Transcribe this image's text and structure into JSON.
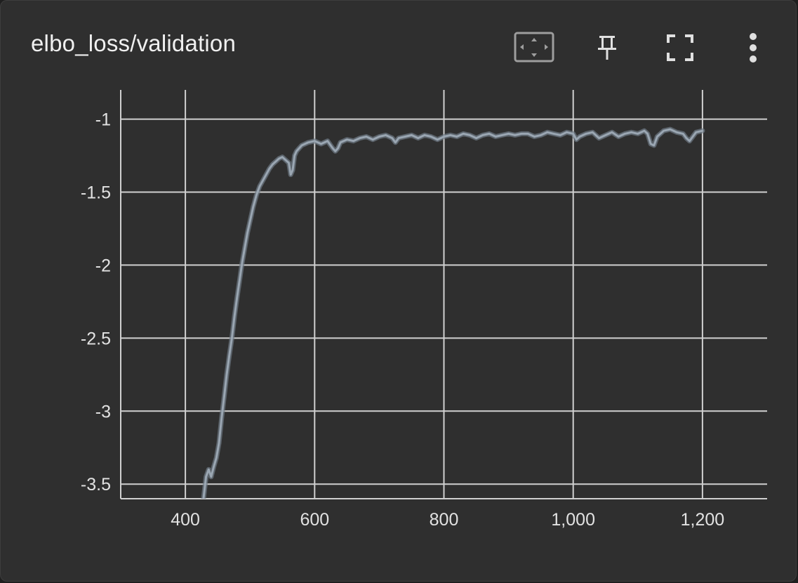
{
  "card": {
    "title": "elbo_loss/validation",
    "toolbar": [
      {
        "name": "fit-domain-icon",
        "label": "Fit domain to data"
      },
      {
        "name": "pin-icon",
        "label": "Pin card"
      },
      {
        "name": "fullscreen-icon",
        "label": "Toggle fullscreen"
      },
      {
        "name": "more-vert-icon",
        "label": "More actions"
      }
    ]
  },
  "colors": {
    "background": "#2f2f2f",
    "grid": "#d0d0d0",
    "line": "#9aa6b2",
    "line_raw": "#6f7b86",
    "text": "#f0f0f0"
  },
  "chart_data": {
    "type": "line",
    "title": "elbo_loss/validation",
    "xlabel": "",
    "ylabel": "",
    "xlim": [
      300,
      1300
    ],
    "ylim": [
      -3.6,
      -0.8
    ],
    "x_ticks": [
      400,
      600,
      800,
      1000,
      1200
    ],
    "x_tick_labels": [
      "400",
      "600",
      "800",
      "1,000",
      "1,200"
    ],
    "y_ticks": [
      -1,
      -1.5,
      -2,
      -2.5,
      -3,
      -3.5
    ],
    "y_tick_labels": [
      "-1",
      "-1.5",
      "-2",
      "-2.5",
      "-3",
      "-3.5"
    ],
    "grid": true,
    "legend": "none",
    "series": [
      {
        "x": [
          428,
          432,
          436,
          440,
          444,
          448,
          452,
          456,
          460,
          464,
          468,
          472,
          476,
          480,
          484,
          488,
          492,
          496,
          500,
          505,
          510,
          515,
          520,
          525,
          530,
          535,
          540,
          545,
          550,
          555,
          560,
          563,
          566,
          569,
          572,
          576,
          580,
          585,
          590,
          595,
          600,
          610,
          620,
          628,
          632,
          636,
          640,
          650,
          660,
          670,
          680,
          690,
          700,
          710,
          720,
          725,
          730,
          740,
          750,
          760,
          770,
          780,
          790,
          800,
          810,
          820,
          830,
          840,
          850,
          860,
          870,
          880,
          890,
          900,
          910,
          920,
          930,
          940,
          950,
          960,
          970,
          980,
          990,
          1000,
          1005,
          1010,
          1020,
          1030,
          1040,
          1050,
          1060,
          1070,
          1080,
          1090,
          1100,
          1110,
          1115,
          1120,
          1125,
          1130,
          1140,
          1150,
          1160,
          1170,
          1175,
          1180,
          1185,
          1190,
          1200
        ],
        "y": [
          -3.6,
          -3.45,
          -3.4,
          -3.45,
          -3.38,
          -3.32,
          -3.22,
          -3.05,
          -2.9,
          -2.75,
          -2.62,
          -2.5,
          -2.35,
          -2.22,
          -2.1,
          -1.98,
          -1.88,
          -1.78,
          -1.7,
          -1.6,
          -1.52,
          -1.46,
          -1.42,
          -1.38,
          -1.34,
          -1.31,
          -1.29,
          -1.27,
          -1.26,
          -1.28,
          -1.3,
          -1.38,
          -1.35,
          -1.25,
          -1.22,
          -1.2,
          -1.18,
          -1.17,
          -1.16,
          -1.155,
          -1.15,
          -1.17,
          -1.15,
          -1.2,
          -1.22,
          -1.2,
          -1.16,
          -1.14,
          -1.15,
          -1.13,
          -1.12,
          -1.14,
          -1.12,
          -1.11,
          -1.13,
          -1.16,
          -1.13,
          -1.12,
          -1.11,
          -1.13,
          -1.11,
          -1.12,
          -1.14,
          -1.12,
          -1.11,
          -1.12,
          -1.1,
          -1.11,
          -1.13,
          -1.11,
          -1.1,
          -1.12,
          -1.11,
          -1.1,
          -1.11,
          -1.1,
          -1.1,
          -1.12,
          -1.11,
          -1.09,
          -1.1,
          -1.11,
          -1.09,
          -1.1,
          -1.14,
          -1.12,
          -1.1,
          -1.09,
          -1.13,
          -1.11,
          -1.09,
          -1.12,
          -1.1,
          -1.09,
          -1.1,
          -1.08,
          -1.1,
          -1.17,
          -1.18,
          -1.12,
          -1.08,
          -1.07,
          -1.09,
          -1.1,
          -1.13,
          -1.15,
          -1.12,
          -1.09,
          -1.08
        ]
      }
    ]
  }
}
